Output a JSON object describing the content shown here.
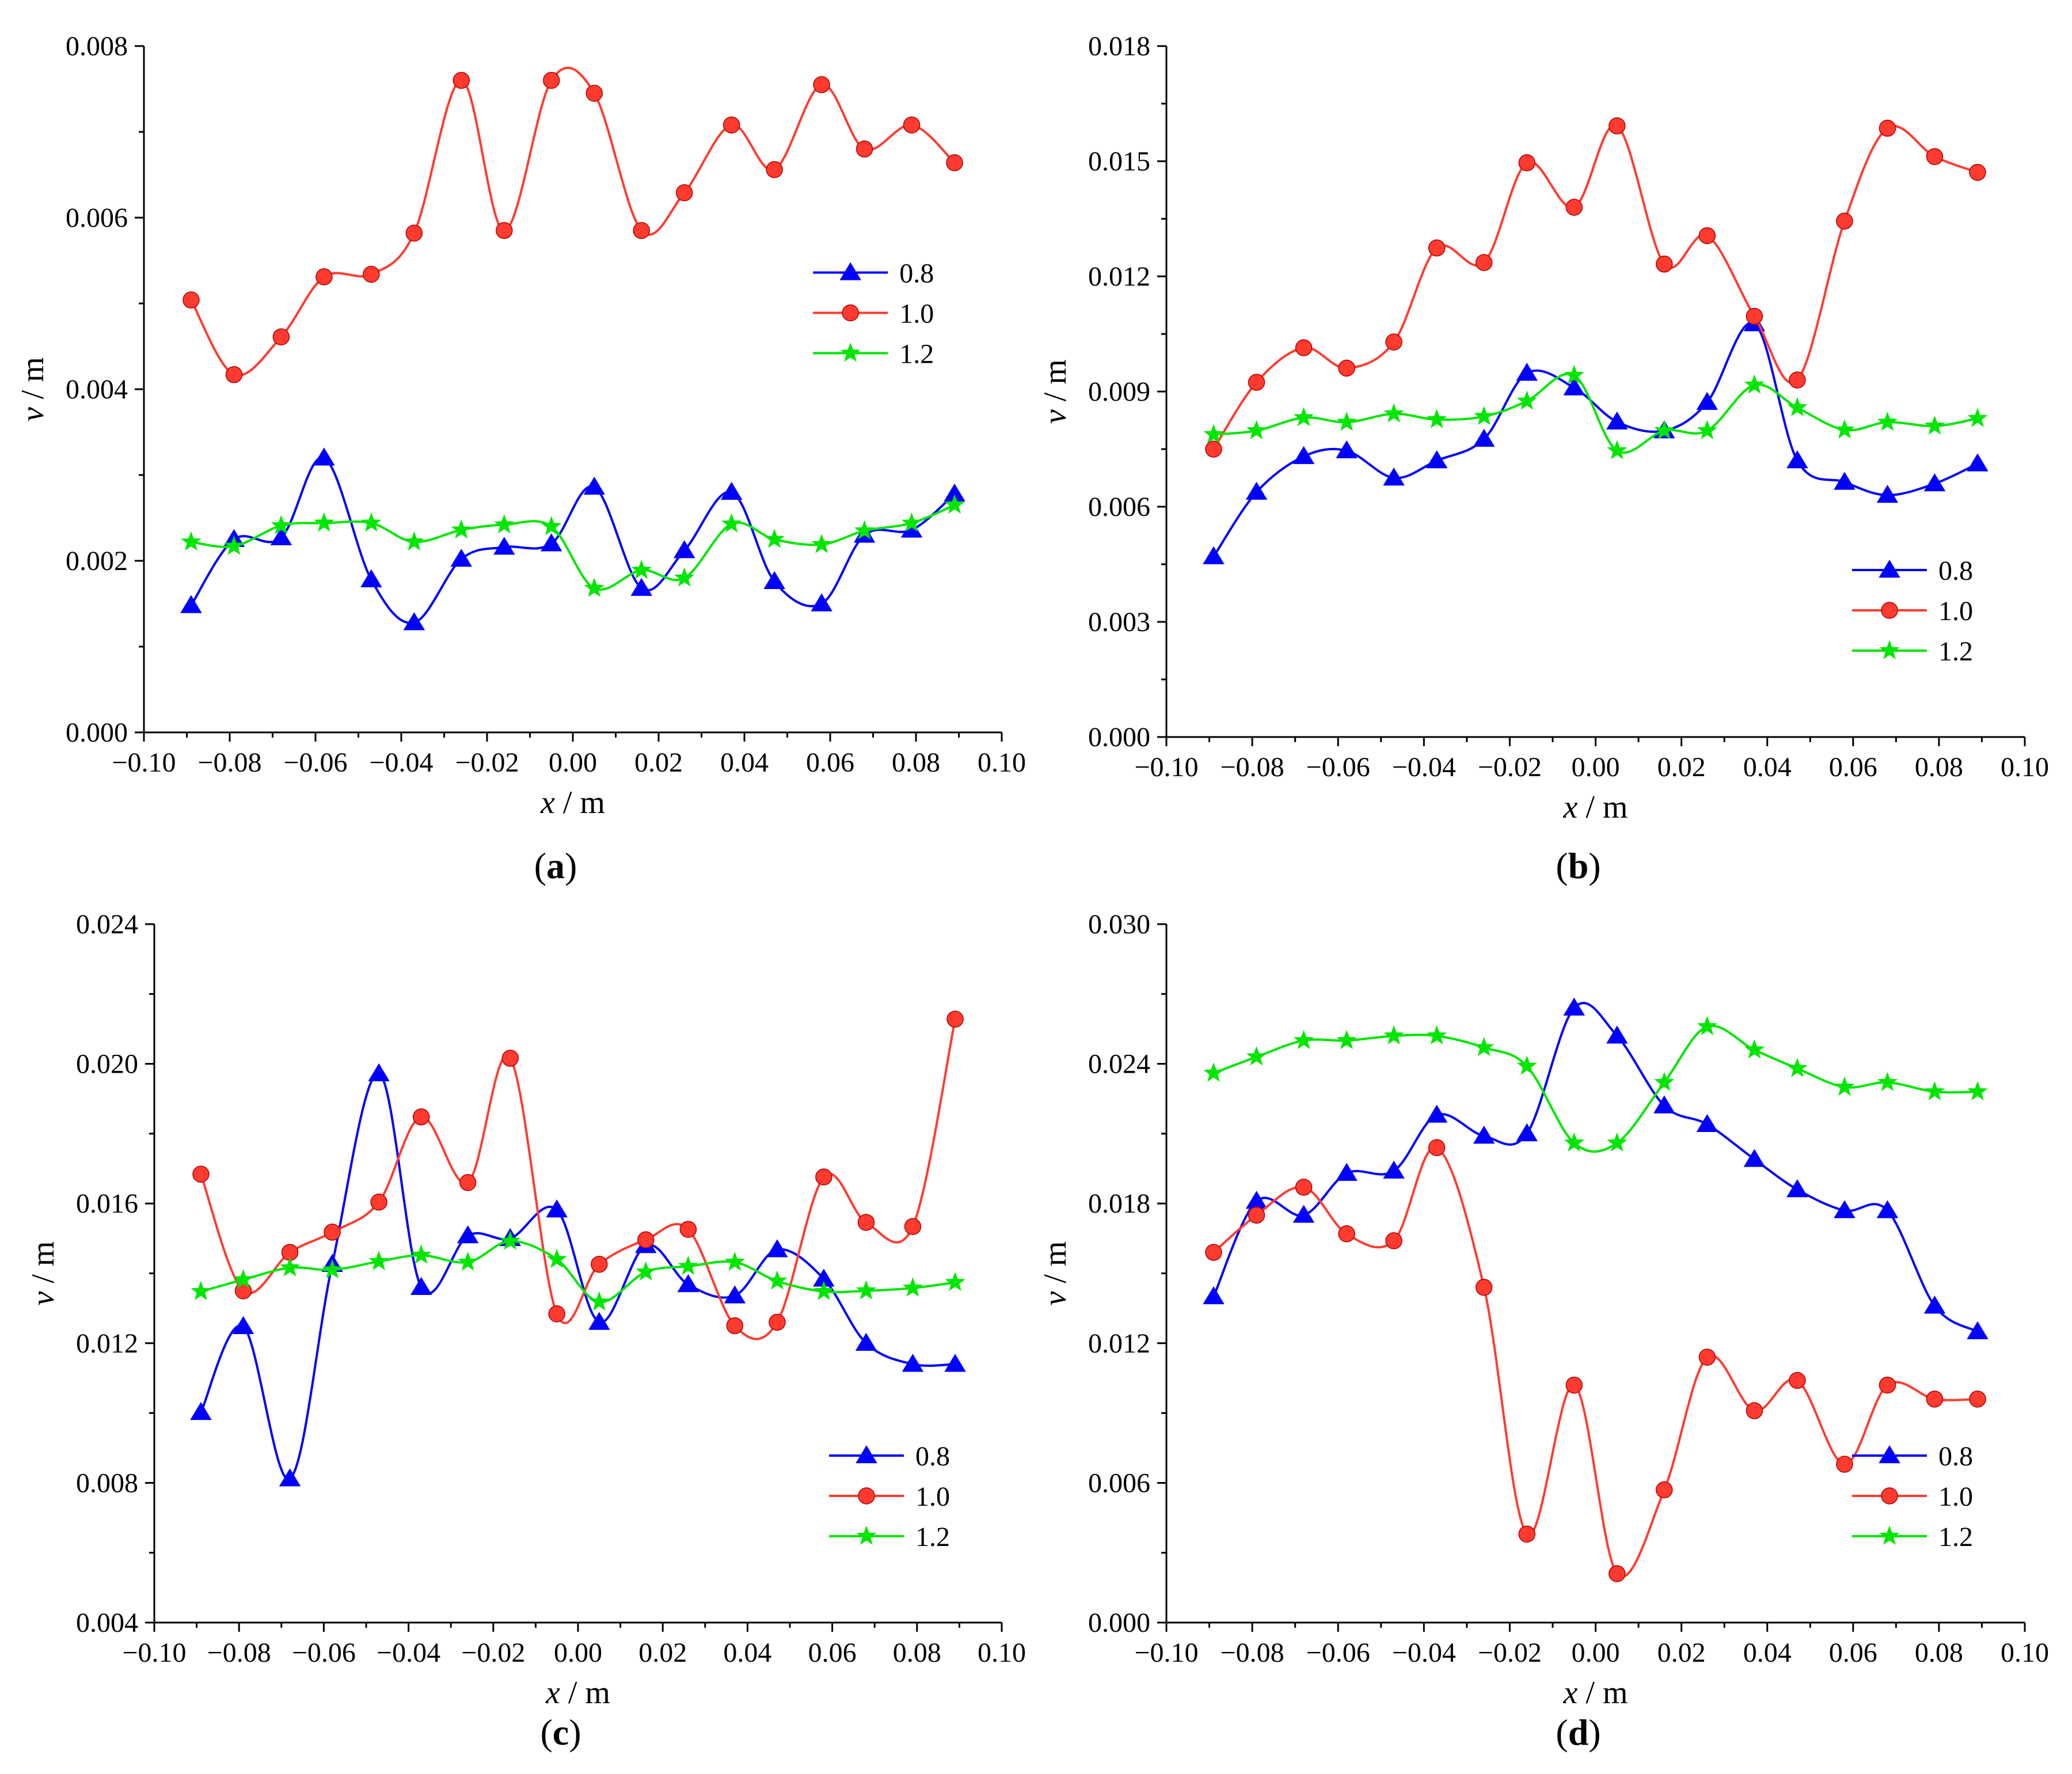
{
  "colors": {
    "0.8": "#0000ff",
    "1.0": "#ff3b30",
    "1.2": "#00e600",
    "axis": "#000000"
  },
  "chart_data": [
    {
      "label_letter": "a",
      "type": "line",
      "xlabel_var": "x",
      "xlabel_unit": " / m",
      "ylabel_var": "v",
      "ylabel_unit": " / m",
      "xlim": [
        -0.1,
        0.1
      ],
      "ylim": [
        0.0,
        0.008
      ],
      "xticks": [
        "−0.10",
        "−0.08",
        "−0.06",
        "−0.04",
        "−0.02",
        "0.00",
        "0.02",
        "0.04",
        "0.06",
        "0.08",
        "0.10"
      ],
      "xtick_values": [
        -0.1,
        -0.08,
        -0.06,
        -0.04,
        -0.02,
        0.0,
        0.02,
        0.04,
        0.06,
        0.08,
        0.1
      ],
      "yticks": [
        "0.000",
        "0.002",
        "0.004",
        "0.006",
        "0.008"
      ],
      "ytick_values": [
        0.0,
        0.002,
        0.004,
        0.006,
        0.008
      ],
      "legend_position": "right-middle",
      "x": [
        -0.089,
        -0.079,
        -0.068,
        -0.058,
        -0.047,
        -0.037,
        -0.026,
        -0.016,
        -0.005,
        0.005,
        0.016,
        0.026,
        0.037,
        0.047,
        0.058,
        0.068,
        0.079,
        0.089
      ],
      "series": [
        {
          "name": "0.8",
          "marker": "triangle",
          "values": [
            0.00148,
            0.00225,
            0.00227,
            0.0032,
            0.00178,
            0.00128,
            0.00202,
            0.00216,
            0.0022,
            0.00286,
            0.00168,
            0.00212,
            0.0028,
            0.00176,
            0.0015,
            0.0023,
            0.00236,
            0.00278
          ]
        },
        {
          "name": "1.0",
          "marker": "circle",
          "values": [
            0.00504,
            0.00417,
            0.00461,
            0.00531,
            0.00534,
            0.00582,
            0.0076,
            0.00585,
            0.0076,
            0.00745,
            0.00585,
            0.00629,
            0.00708,
            0.00656,
            0.00755,
            0.0068,
            0.00708,
            0.00664
          ]
        },
        {
          "name": "1.2",
          "marker": "star",
          "values": [
            0.00222,
            0.00217,
            0.00241,
            0.00244,
            0.00244,
            0.00222,
            0.00236,
            0.00242,
            0.0024,
            0.00168,
            0.00189,
            0.0018,
            0.00243,
            0.00225,
            0.00219,
            0.00235,
            0.00244,
            0.00265
          ]
        }
      ]
    },
    {
      "label_letter": "b",
      "type": "line",
      "xlabel_var": "x",
      "xlabel_unit": " / m",
      "ylabel_var": "v",
      "ylabel_unit": " / m",
      "xlim": [
        -0.1,
        0.1
      ],
      "ylim": [
        0.0,
        0.018
      ],
      "xticks": [
        "−0.10",
        "−0.08",
        "−0.06",
        "−0.04",
        "−0.02",
        "0.00",
        "0.02",
        "0.04",
        "0.06",
        "0.08",
        "0.10"
      ],
      "xtick_values": [
        -0.1,
        -0.08,
        -0.06,
        -0.04,
        -0.02,
        0.0,
        0.02,
        0.04,
        0.06,
        0.08,
        0.1
      ],
      "yticks": [
        "0.000",
        "0.003",
        "0.006",
        "0.009",
        "0.012",
        "0.015",
        "0.018"
      ],
      "ytick_values": [
        0.0,
        0.003,
        0.006,
        0.009,
        0.012,
        0.015,
        0.018
      ],
      "legend_position": "bottom-right",
      "x": [
        -0.089,
        -0.079,
        -0.068,
        -0.058,
        -0.047,
        -0.037,
        -0.026,
        -0.016,
        -0.005,
        0.005,
        0.016,
        0.026,
        0.037,
        0.047,
        0.058,
        0.068,
        0.079,
        0.089
      ],
      "series": [
        {
          "name": "0.8",
          "marker": "triangle",
          "values": [
            0.0047,
            0.00638,
            0.00731,
            0.00746,
            0.00675,
            0.0072,
            0.00776,
            0.00948,
            0.0091,
            0.00821,
            0.00798,
            0.00872,
            0.01077,
            0.0072,
            0.00664,
            0.0063,
            0.0066,
            0.00712
          ]
        },
        {
          "name": "1.0",
          "marker": "circle",
          "values": [
            0.0075,
            0.00924,
            0.01014,
            0.00961,
            0.01029,
            0.01274,
            0.01236,
            0.01496,
            0.0138,
            0.01592,
            0.01232,
            0.01306,
            0.01096,
            0.0093,
            0.01344,
            0.01586,
            0.01512,
            0.01471
          ]
        },
        {
          "name": "1.2",
          "marker": "star",
          "values": [
            0.00788,
            0.00798,
            0.00832,
            0.0082,
            0.00842,
            0.00827,
            0.00835,
            0.00875,
            0.00942,
            0.00746,
            0.00798,
            0.00798,
            0.00917,
            0.00858,
            0.008,
            0.0082,
            0.0081,
            0.0083
          ]
        }
      ]
    },
    {
      "label_letter": "c",
      "type": "line",
      "xlabel_var": "x",
      "xlabel_unit": " / m",
      "ylabel_var": "v",
      "ylabel_unit": " / m",
      "xlim": [
        -0.1,
        0.1
      ],
      "ylim": [
        0.004,
        0.024
      ],
      "xticks": [
        "−0.10",
        "−0.08",
        "−0.06",
        "−0.04",
        "−0.02",
        "0.00",
        "0.02",
        "0.04",
        "0.06",
        "0.08",
        "0.10"
      ],
      "xtick_values": [
        -0.1,
        -0.08,
        -0.06,
        -0.04,
        -0.02,
        0.0,
        0.02,
        0.04,
        0.06,
        0.08,
        0.1
      ],
      "yticks": [
        "0.004",
        "0.008",
        "0.012",
        "0.016",
        "0.020",
        "0.024"
      ],
      "ytick_values": [
        0.004,
        0.008,
        0.012,
        0.016,
        0.02,
        0.024
      ],
      "legend_position": "bottom-right",
      "x": [
        -0.089,
        -0.079,
        -0.068,
        -0.058,
        -0.047,
        -0.037,
        -0.026,
        -0.016,
        -0.005,
        0.005,
        0.016,
        0.026,
        0.037,
        0.047,
        0.058,
        0.068,
        0.079,
        0.089
      ],
      "series": [
        {
          "name": "0.8",
          "marker": "triangle",
          "values": [
            0.01002,
            0.01248,
            0.00812,
            0.01426,
            0.01972,
            0.0136,
            0.01508,
            0.015,
            0.01582,
            0.0126,
            0.0148,
            0.01368,
            0.01336,
            0.01468,
            0.01384,
            0.012,
            0.0114,
            0.0114
          ]
        },
        {
          "name": "1.0",
          "marker": "circle",
          "values": [
            0.01684,
            0.0135,
            0.0146,
            0.01518,
            0.01604,
            0.01848,
            0.0166,
            0.02016,
            0.01284,
            0.01426,
            0.01496,
            0.01526,
            0.0125,
            0.0126,
            0.01676,
            0.01546,
            0.01534,
            0.02128
          ]
        },
        {
          "name": "1.2",
          "marker": "star",
          "values": [
            0.01348,
            0.01382,
            0.01416,
            0.0141,
            0.01434,
            0.01452,
            0.01432,
            0.01492,
            0.0144,
            0.01318,
            0.01404,
            0.0142,
            0.01432,
            0.01378,
            0.01348,
            0.0135,
            0.01358,
            0.01374
          ]
        }
      ]
    },
    {
      "label_letter": "d",
      "type": "line",
      "xlabel_var": "x",
      "xlabel_unit": " / m",
      "ylabel_var": "v",
      "ylabel_unit": " / m",
      "xlim": [
        -0.1,
        0.1
      ],
      "ylim": [
        0.0,
        0.03
      ],
      "xticks": [
        "−0.10",
        "−0.08",
        "−0.06",
        "−0.04",
        "−0.02",
        "0.00",
        "0.02",
        "0.04",
        "0.06",
        "0.08",
        "0.10"
      ],
      "xtick_values": [
        -0.1,
        -0.08,
        -0.06,
        -0.04,
        -0.02,
        0.0,
        0.02,
        0.04,
        0.06,
        0.08,
        0.1
      ],
      "yticks": [
        "0.000",
        "0.006",
        "0.012",
        "0.018",
        "0.024",
        "0.030"
      ],
      "ytick_values": [
        0.0,
        0.006,
        0.012,
        0.018,
        0.024,
        0.03
      ],
      "legend_position": "bottom-right",
      "x": [
        -0.089,
        -0.079,
        -0.068,
        -0.058,
        -0.047,
        -0.037,
        -0.026,
        -0.016,
        -0.005,
        0.005,
        0.016,
        0.026,
        0.037,
        0.047,
        0.058,
        0.068,
        0.079,
        0.089
      ],
      "series": [
        {
          "name": "0.8",
          "marker": "triangle",
          "values": [
            0.014,
            0.0181,
            0.0175,
            0.0193,
            0.0194,
            0.0218,
            0.0209,
            0.021,
            0.0264,
            0.0252,
            0.0222,
            0.0214,
            0.0199,
            0.0186,
            0.0177,
            0.0177,
            0.0136,
            0.0125
          ]
        },
        {
          "name": "1.0",
          "marker": "circle",
          "values": [
            0.0159,
            0.0175,
            0.0187,
            0.0167,
            0.0164,
            0.0204,
            0.0144,
            0.0038,
            0.0102,
            0.0021,
            0.0057,
            0.0114,
            0.0091,
            0.0104,
            0.0068,
            0.0102,
            0.0096,
            0.0096
          ]
        },
        {
          "name": "1.2",
          "marker": "star",
          "values": [
            0.0236,
            0.0243,
            0.025,
            0.025,
            0.0252,
            0.0252,
            0.0247,
            0.0239,
            0.0206,
            0.0206,
            0.0232,
            0.0256,
            0.0246,
            0.0238,
            0.023,
            0.0232,
            0.0228,
            0.0228
          ]
        }
      ]
    }
  ]
}
